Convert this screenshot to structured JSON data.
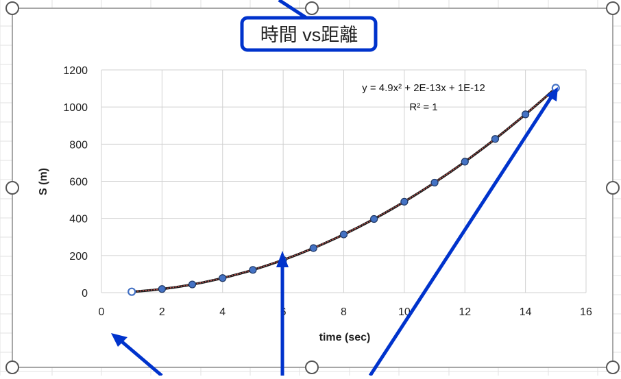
{
  "chart_data": {
    "type": "scatter",
    "title": "時間 vs距離",
    "xlabel": "time (sec)",
    "ylabel": "S (m)",
    "xlim": [
      0,
      16
    ],
    "ylim": [
      0,
      1200
    ],
    "xticks": [
      0,
      2,
      4,
      6,
      8,
      10,
      12,
      14,
      16
    ],
    "yticks": [
      0,
      200,
      400,
      600,
      800,
      1000,
      1200
    ],
    "grid": true,
    "legend": "none",
    "x": [
      1,
      2,
      3,
      4,
      5,
      6,
      7,
      8,
      9,
      10,
      11,
      12,
      13,
      14,
      15
    ],
    "y": [
      4.9,
      19.6,
      44.1,
      78.4,
      122.5,
      176.4,
      240.1,
      313.6,
      396.9,
      490,
      592.9,
      705.6,
      828.1,
      960.4,
      1102.5
    ],
    "trendline": {
      "type": "polynomial",
      "order": 2,
      "equation": "y = 4.9x² + 2E-13x + 1E-12",
      "r_squared": "R² = 1"
    },
    "colors": {
      "marker_fill": "#4472c4",
      "marker_stroke": "#1f3864",
      "series_line": "#c0504d",
      "trendline": "#1f1f1f",
      "title_box": "#0033cc",
      "annotation_arrows": "#0033cc",
      "selection_handles": "#555555"
    }
  }
}
